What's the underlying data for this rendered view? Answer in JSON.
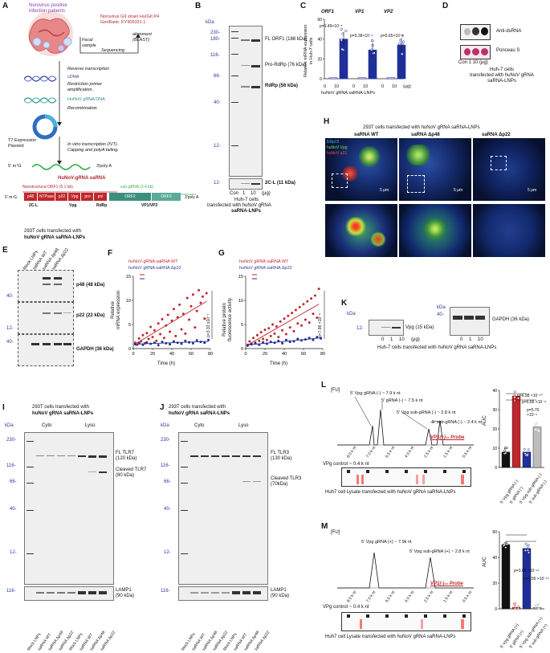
{
  "panelA": {
    "letter": "A",
    "patients": "Norovirus positive\ninfection patients",
    "strain_title": "Norovirus GII strain Hu/GII.P4",
    "genbank": "GenBank: KY905331.1",
    "fecal": "Fecal\nsample",
    "sequencing": "Sequencing",
    "alignment": "alignment\n(BLAST)",
    "rt": "Reverse transcription",
    "cdna": "cDNA",
    "restriction": "Restriction primer\namplification.",
    "gdna": "HuNoV gRNA DNA",
    "recomb": "Recombination",
    "t7": "T7 Expression\nPlasmid",
    "ivt": "In vitro transcription (IVT).\nCapping and polyA tailing.",
    "cap5": "5' m⁷G",
    "polyA": "3'poly A",
    "saRNA_title": "HuNoV-gRNA saRNA",
    "ns_orf": "Nonstructural ORF1 (5.1 kb)",
    "subg": "sub-gRNA (2.4 kb)",
    "genes": [
      "p48",
      "NTPase",
      "p22",
      "Vpg",
      "pro",
      "pol",
      "ORF2",
      "ORF3"
    ],
    "under_labels": [
      "2C-L",
      "Vpg",
      "RdRp",
      "VP1/VP2"
    ],
    "cap5b": "5' m⁷G",
    "polyAb": "3'poly A"
  },
  "panelB": {
    "letter": "B",
    "kda": "kDa",
    "mw": [
      "230-",
      "180-",
      "116-",
      "66-",
      "40-",
      "12-"
    ],
    "mw2": "12-",
    "bands": [
      "FL ORF1 (188 kDa)",
      "Pro-RdRp (76 kDa)",
      "RdRp (56 kDa)",
      "2C-L (11 kDa)"
    ],
    "lanes": [
      "Con",
      "1",
      "10",
      "(μg)"
    ],
    "caption1": "Huh-7 cells",
    "caption2": "transfected with huNoV gRNA",
    "caption3": "saRNA-LNPs"
  },
  "panelC": {
    "letter": "C",
    "groups": [
      "ORF1",
      "VP1",
      "VP2"
    ],
    "ylabel": "Relative mRNA expression\nin Huh-7 cells",
    "pvals": [
      "p=1.49×10⁻⁵",
      "p=5.38×10⁻⁶",
      "p=5.65×10⁻⁸"
    ],
    "xticks": [
      "0",
      "10",
      "0",
      "10",
      "0",
      "10",
      "(μg)"
    ],
    "xlabel": "huNoV gRNA saRNA-LNPs"
  },
  "panelD": {
    "letter": "D",
    "rows": [
      "Anti-dsRNA",
      "Ponceau S"
    ],
    "lanes": "Con 1  10 (μg)",
    "caption": "Huh-7 cells\ntransfected with huNoV gRNA\nsaRNA-LNPs"
  },
  "panelE": {
    "letter": "E",
    "title1": "293T cells transfected with",
    "title2": "huNoV gRNA saRNA-LNPs",
    "lanes": [
      "Mock LNPs",
      "saRNA WT",
      "saRNA Δp48",
      "saRNA Δp22"
    ],
    "blots": [
      "p48 (48 kDa)",
      "p22 (22 kDa)",
      "GAPDH (36 kDa)"
    ],
    "mw": [
      "40-",
      "12-",
      "40-"
    ]
  },
  "panelF": {
    "letter": "F",
    "legend": [
      "huNoV gRNA saRNA WT",
      "huNoV gRNA saRNA Δp22"
    ],
    "ylabel": "Relative\nmRNA expression",
    "xlabel": "Time (h)",
    "pval": "p=3.33 x10⁻⁵"
  },
  "panelG": {
    "letter": "G",
    "legend": [
      "huNoV gRNA saRNA WT",
      "huNoV gRNA saRNA Δp22"
    ],
    "ylabel": "Relative protein\nfluorescence activity",
    "xlabel": "Time (h)",
    "pval": "p=7.86 ×10⁻⁸"
  },
  "panelH": {
    "letter": "H",
    "title": "293T cells transfected with huNoV gRNA saRNA-LNPs",
    "cols": [
      "saRNA WT",
      "saRNA Δp48",
      "saRNA Δp22"
    ],
    "stains": [
      "ERp72",
      "huNoV Vpg",
      "huNoV p22"
    ],
    "scale": "5 μm"
  },
  "panelK": {
    "letter": "K",
    "kda": "kDa",
    "mw1": "12-",
    "vpg": "Vpg (15 kDa)",
    "lanes": [
      "0",
      "1",
      "10",
      "(μg)"
    ],
    "mw2": "40-",
    "gapdh": "GAPDH (36 kDa)",
    "caption": "Huh-7 cells transfected with huNoV gRNA saRNA-LNPs"
  },
  "panelI": {
    "letter": "I",
    "title1": "293T cells transfected with",
    "title2": "huNoV gRNA saRNA-LNPs",
    "fractions": [
      "Cyto",
      "Lyso"
    ],
    "kda": "kDa",
    "mw": [
      "230-",
      "116-",
      "66-",
      "40-",
      "12-"
    ],
    "mw2": "116-",
    "bands": [
      "FL TLR7\n(120 kDa)",
      "Cleaved TLR7\n(80 kDa)",
      "LAMP1\n(90 kDa)"
    ],
    "lanes": [
      "Mock LNPs",
      "saRNA WT",
      "saRNA Δp48",
      "saRNA Δp22",
      "Mock LNPs",
      "saRNA WT",
      "saRNA Δp48",
      "saRNA Δp22"
    ]
  },
  "panelJ": {
    "letter": "J",
    "title1": "293T cells transfected with",
    "title2": "huNoV gRNA saRNA-LNPs",
    "fractions": [
      "Cyto",
      "Lyso"
    ],
    "kda": "kDa",
    "mw": [
      "230-",
      "116-",
      "66-",
      "40-",
      "12-"
    ],
    "mw2": "116-",
    "bands": [
      "FL TLR3\n(130 kDa)",
      "Cleaved TLR3\n(70kDa)",
      "LAMP1\n(90 kDa)"
    ],
    "lanes": [
      "Mock LNPs",
      "saRNA WT",
      "saRNA Δp48",
      "saRNA Δp22",
      "Mock LNPs",
      "saRNA WT",
      "saRNA Δp48",
      "saRNA Δp22"
    ]
  },
  "panelL": {
    "letter": "L",
    "fu": "[FU]",
    "peaks": [
      "5' Vpg gRNA (-) ~ 7.9 k nt",
      "5' gRNA (-) ~ 7.5 k nt",
      "5' Vpg sub-gRNA (-) ~ 2.8 k nt",
      "5' sub-gRNA (-) ~ 2.4 k nt"
    ],
    "probe": "VP1(+)₄₀ Probe",
    "ladder": [
      "8.0 k nt",
      "7.0 k nt",
      "5.5 k nt",
      "4.0 k nt",
      "2.5 k nt",
      "1.5 k nt",
      "0.5 k nt"
    ],
    "vpg_control": "VPg control ~ 0.4 k nt",
    "caption": "Huh7 cell Lysate transfected with huNoV gRNA saRNA-LNPs",
    "auc": "AUC",
    "pvals": [
      "p=6.98 ×10⁻¹⁰",
      "p=6.86 ×10⁻⁸",
      "p=5.70 ×10⁻⁵"
    ],
    "cats": [
      "5' Vpg gRNA (-)",
      "5' gRNA (-)",
      "5' Vpg sub-gRNA (-)",
      "5' sub-gRNA (-)"
    ],
    "yticks": [
      "0",
      "10",
      "20",
      "30",
      "40"
    ]
  },
  "panelM": {
    "letter": "M",
    "fu": "[FU]",
    "peaks": [
      "5' Vpg gRNA (+) ~ 7.9k nt",
      "5' Vpg sub-gRNA (+) ~ 2.8 k nt"
    ],
    "probe": "VP1(-)₄₀ Probe",
    "ladder": [
      "8.0 k nt",
      "7.0 k nt",
      "5.5 k nt",
      "4.0 k nt",
      "2.5 k nt",
      "1.5 k nt",
      "0.5 k nt"
    ],
    "vpg_control": "VPg control ~ 0.4 k nt",
    "caption": "Huh7 cell Lysate transfected with huNoV gRNA saRNA-LNPs",
    "auc": "AUC",
    "pvals": [
      "p=3.66 ×10⁻¹¹",
      "p=6.55 ×10⁻¹⁵"
    ],
    "cats": [
      "5' Vpg gRNA (+)",
      "5' gRNA (+)",
      "5' Vpg sub-gRNA (+)",
      "5' sub-gRNA (+)"
    ],
    "yticks": [
      "0",
      "20",
      "40",
      "60"
    ]
  },
  "chart_data": [
    {
      "panel": "C",
      "type": "bar",
      "categories": [
        "ORF1 0",
        "ORF1 10",
        "VP1 0",
        "VP1 10",
        "VP2 0",
        "VP2 10"
      ],
      "values": [
        1,
        40,
        1,
        29,
        1,
        34
      ],
      "ylabel": "Relative mRNA expression in Huh-7 cells",
      "ylim": [
        0,
        60
      ],
      "yticks": [
        0,
        20,
        40,
        60
      ],
      "colors": [
        "#ffffff",
        "#1f2f9a"
      ]
    },
    {
      "panel": "F",
      "type": "scatter",
      "xlabel": "Time (h)",
      "ylabel": "Relative mRNA expression",
      "xlim": [
        0,
        80
      ],
      "ylim": [
        0,
        15
      ],
      "xticks": [
        0,
        20,
        40,
        60,
        80
      ],
      "yticks": [
        0,
        5,
        10,
        15
      ],
      "series": [
        {
          "name": "huNoV gRNA saRNA WT",
          "color": "#c0262d",
          "x": [
            2,
            4,
            6,
            8,
            10,
            12,
            14,
            16,
            18,
            20,
            22,
            24,
            26,
            28,
            30,
            32,
            34,
            36,
            38,
            40,
            42,
            44,
            46,
            48,
            50,
            52,
            54,
            56,
            58,
            60,
            62,
            64,
            66,
            68,
            70,
            72,
            74,
            76
          ],
          "y": [
            1.2,
            0.8,
            2.1,
            1.5,
            2.8,
            1.1,
            3.2,
            2.0,
            4.5,
            2.4,
            3.8,
            1.6,
            5.2,
            3.0,
            6.1,
            2.2,
            4.8,
            7.0,
            3.5,
            5.8,
            8.2,
            2.6,
            6.5,
            9.1,
            4.0,
            7.2,
            3.1,
            10.5,
            6.0,
            8.8,
            11.2,
            4.4,
            7.8,
            12.1,
            9.5,
            10.8,
            6.2,
            11.5
          ]
        },
        {
          "name": "huNoV gRNA saRNA Δp22",
          "color": "#1f2f9a",
          "x": [
            2,
            6,
            10,
            14,
            18,
            22,
            26,
            30,
            34,
            38,
            42,
            46,
            50,
            54,
            58,
            62,
            66,
            70,
            74,
            78
          ],
          "y": [
            0.9,
            1.1,
            0.8,
            1.3,
            1.0,
            1.2,
            0.7,
            1.4,
            1.1,
            0.9,
            1.5,
            1.2,
            1.0,
            1.6,
            1.3,
            1.1,
            1.7,
            1.4,
            1.2,
            1.8
          ]
        }
      ]
    },
    {
      "panel": "G",
      "type": "scatter",
      "xlabel": "Time (h)",
      "ylabel": "Relative protein fluorescence activity",
      "xlim": [
        0,
        80
      ],
      "ylim": [
        0,
        15
      ],
      "xticks": [
        0,
        20,
        40,
        60,
        80
      ],
      "yticks": [
        0,
        5,
        10,
        15
      ],
      "series": [
        {
          "name": "huNoV gRNA saRNA WT",
          "color": "#c0262d",
          "x": [
            2,
            4,
            6,
            8,
            10,
            12,
            14,
            16,
            18,
            20,
            22,
            24,
            26,
            28,
            30,
            32,
            34,
            36,
            38,
            40,
            42,
            44,
            46,
            48,
            50,
            52,
            54,
            56,
            58,
            60,
            62,
            64,
            66,
            68,
            70,
            72,
            74,
            76
          ],
          "y": [
            0.8,
            1.5,
            1.0,
            2.2,
            1.2,
            2.8,
            1.6,
            3.4,
            2.0,
            3.9,
            1.8,
            4.2,
            2.6,
            5.0,
            3.1,
            4.6,
            2.4,
            5.6,
            3.8,
            6.2,
            3.0,
            6.8,
            4.4,
            7.4,
            3.6,
            8.0,
            5.2,
            8.6,
            4.8,
            9.2,
            6.0,
            9.8,
            5.4,
            10.4,
            7.2,
            11.0,
            6.4,
            12.4
          ]
        },
        {
          "name": "huNoV gRNA saRNA Δp22",
          "color": "#1f2f9a",
          "x": [
            2,
            6,
            10,
            14,
            18,
            22,
            26,
            30,
            34,
            38,
            42,
            46,
            50,
            54,
            58,
            62,
            66,
            70,
            74,
            78
          ],
          "y": [
            0.6,
            0.9,
            1.1,
            0.8,
            1.3,
            1.0,
            1.4,
            1.2,
            1.6,
            1.1,
            1.8,
            1.4,
            1.5,
            2.0,
            1.7,
            1.9,
            2.2,
            1.8,
            2.4,
            2.1
          ]
        }
      ]
    },
    {
      "panel": "L",
      "type": "bar",
      "categories": [
        "5' Vpg gRNA (-)",
        "5' gRNA (-)",
        "5' Vpg sub-gRNA (-)",
        "5' sub-gRNA (-)"
      ],
      "values": [
        8,
        37,
        8,
        21
      ],
      "ylabel": "AUC",
      "ylim": [
        0,
        40
      ],
      "colors": [
        "#111111",
        "#c0262d",
        "#1f2f9a",
        "#bdbdbd"
      ]
    },
    {
      "panel": "M",
      "type": "bar",
      "categories": [
        "5' Vpg gRNA (+)",
        "5' gRNA (+)",
        "5' Vpg sub-gRNA (+)",
        "5' sub-gRNA (+)"
      ],
      "values": [
        50,
        1,
        47,
        1
      ],
      "ylabel": "AUC",
      "ylim": [
        0,
        60
      ],
      "colors": [
        "#111111",
        "#c0262d",
        "#1f2f9a",
        "#bdbdbd"
      ]
    }
  ]
}
